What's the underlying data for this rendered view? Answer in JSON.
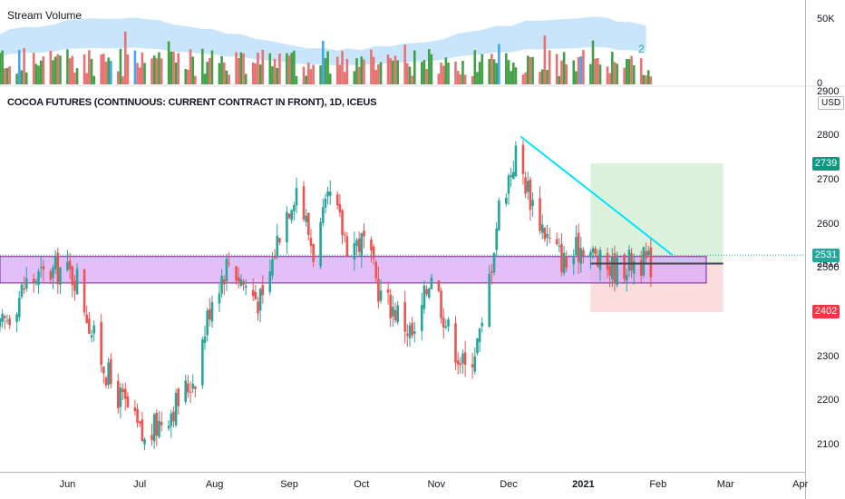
{
  "volume_pane": {
    "title": "Stream Volume",
    "badge": "2",
    "y_ticks": [
      "50K",
      "0"
    ]
  },
  "main_pane": {
    "title": "COCOA FUTURES (CONTINUOUS: CURRENT CONTRACT IN FRONT), 1D, ICEUS",
    "currency": "USD",
    "y_ticks": [
      "2900",
      "2800",
      "2700",
      "2600",
      "2500",
      "2400",
      "2300",
      "2200",
      "2100"
    ],
    "hidden_tick": "2512"
  },
  "x_ticks": [
    "Jun",
    "Jul",
    "Aug",
    "Sep",
    "Oct",
    "Nov",
    "Dec",
    "2021",
    "Feb",
    "Mar",
    "Apr"
  ],
  "price_tags": [
    {
      "label": "2739",
      "value": 2739,
      "color": "#089981"
    },
    {
      "label": "2531",
      "value": 2531,
      "color": "#26a69a"
    },
    {
      "label": "2402",
      "value": 2402,
      "color": "#f23645"
    }
  ],
  "colors": {
    "up": "#26a69a",
    "down": "#ef5350",
    "volume_up": "#43a047",
    "volume_down": "#e57373",
    "volume_neutral": "#42a5f5",
    "volume_area": "#bbdefb",
    "zone_fill": "#d9a8f5",
    "zone_stroke": "#7b1fa2",
    "trendline": "#00e5ff",
    "target_fill": "#d7f0d7",
    "stop_fill": "#fbd9d9",
    "entry_line": "#434651"
  },
  "chart_data": {
    "type": "candlestick",
    "title": "COCOA FUTURES (CONTINUOUS: CURRENT CONTRACT IN FRONT), 1D, ICEUS",
    "ylabel": "USD",
    "ylim": [
      2040,
      2910
    ],
    "xlim": [
      "2020-05-04",
      "2021-04-03"
    ],
    "y_ticks": [
      2100,
      2200,
      2300,
      2400,
      2500,
      2600,
      2700,
      2800,
      2900
    ],
    "series": [
      {
        "name": "close_path",
        "points": [
          [
            "2020-05-04",
            2360
          ],
          [
            "2020-05-15",
            2470
          ],
          [
            "2020-05-29",
            2500
          ],
          [
            "2020-06-05",
            2480
          ],
          [
            "2020-06-12",
            2340
          ],
          [
            "2020-06-19",
            2240
          ],
          [
            "2020-06-26",
            2180
          ],
          [
            "2020-07-03",
            2105
          ],
          [
            "2020-07-10",
            2160
          ],
          [
            "2020-07-17",
            2200
          ],
          [
            "2020-07-24",
            2260
          ],
          [
            "2020-07-31",
            2440
          ],
          [
            "2020-08-07",
            2520
          ],
          [
            "2020-08-14",
            2460
          ],
          [
            "2020-08-21",
            2420
          ],
          [
            "2020-08-28",
            2590
          ],
          [
            "2020-09-04",
            2690
          ],
          [
            "2020-09-11",
            2540
          ],
          [
            "2020-09-18",
            2660
          ],
          [
            "2020-09-25",
            2560
          ],
          [
            "2020-10-02",
            2560
          ],
          [
            "2020-10-09",
            2440
          ],
          [
            "2020-10-16",
            2400
          ],
          [
            "2020-10-23",
            2340
          ],
          [
            "2020-10-30",
            2500
          ],
          [
            "2020-11-06",
            2360
          ],
          [
            "2020-11-13",
            2270
          ],
          [
            "2020-11-20",
            2360
          ],
          [
            "2020-11-27",
            2640
          ],
          [
            "2020-12-04",
            2760
          ],
          [
            "2020-12-11",
            2650
          ],
          [
            "2020-12-18",
            2560
          ],
          [
            "2020-12-25",
            2510
          ],
          [
            "2021-01-01",
            2560
          ],
          [
            "2021-01-08",
            2510
          ],
          [
            "2021-01-15",
            2500
          ],
          [
            "2021-01-22",
            2520
          ],
          [
            "2021-01-29",
            2512
          ]
        ]
      }
    ],
    "volume": {
      "ylim": [
        0,
        60000
      ],
      "y_ticks": [
        0,
        50000
      ]
    },
    "annotations": [
      {
        "type": "zone",
        "y": [
          2468,
          2528
        ],
        "x": [
          "2020-05-04",
          "2021-02-21"
        ]
      },
      {
        "type": "trendline",
        "from": [
          "2020-12-06",
          2800
        ],
        "to": [
          "2021-02-07",
          2531
        ]
      },
      {
        "type": "long_position",
        "x": [
          "2021-01-04",
          "2021-02-28"
        ],
        "entry": 2512,
        "target": 2739,
        "stop": 2402
      },
      {
        "type": "last_price",
        "value": 2531
      }
    ]
  }
}
